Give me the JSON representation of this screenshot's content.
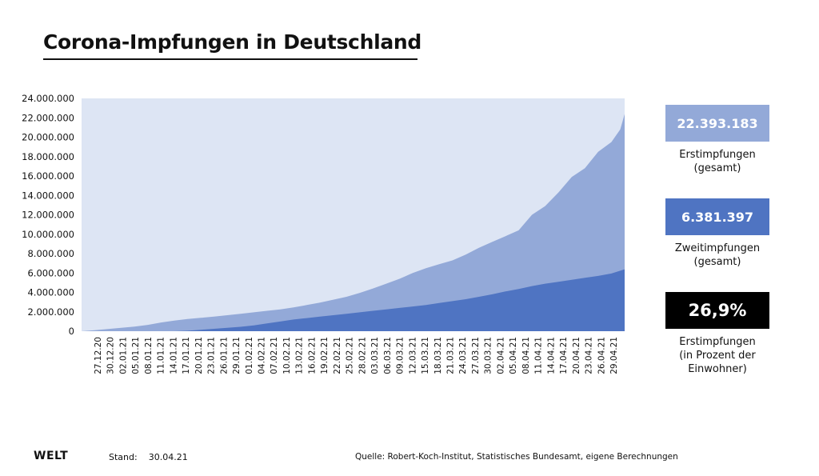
{
  "title": "Corona-Impfungen in Deutschland",
  "colors": {
    "background_area": "#dde5f4",
    "erstimpfungen": "#93a9d8",
    "zweitimpfungen": "#4f74c2",
    "box_percent": "#000000"
  },
  "stats": [
    {
      "value": "22.393.183",
      "label": "Erstimpfungen\n(gesamt)"
    },
    {
      "value": "6.381.397",
      "label": "Zweitimpfungen\n(gesamt)"
    },
    {
      "value": "26,9%",
      "label": "Erstimpfungen\n(in Prozent der\nEinwohner)"
    }
  ],
  "footer": {
    "logo": "WELT",
    "stand_label": "Stand:",
    "stand_date": "30.04.21",
    "source": "Quelle: Robert-Koch-Institut, Statistisches Bundesamt, eigene Berechnungen"
  },
  "chart_data": {
    "type": "area",
    "title": "Corona-Impfungen in Deutschland",
    "xlabel": "",
    "ylabel": "",
    "ylim": [
      0,
      24000000
    ],
    "y_ticks": [
      0,
      2000000,
      4000000,
      6000000,
      8000000,
      10000000,
      12000000,
      14000000,
      16000000,
      18000000,
      20000000,
      22000000,
      24000000
    ],
    "y_tick_labels": [
      "0",
      "2.000.000",
      "4.000.000",
      "6.000.000",
      "8.000.000",
      "10.000.000",
      "12.000.000",
      "14.000.000",
      "16.000.000",
      "18.000.000",
      "20.000.000",
      "22.000.000",
      "24.000.000"
    ],
    "x_start": "2020-12-27",
    "x_end": "2021-04-29",
    "x_tick_labels": [
      "27.12.20",
      "30.12.20",
      "02.01.21",
      "05.01.21",
      "08.01.21",
      "11.01.21",
      "14.01.21",
      "17.01.21",
      "20.01.21",
      "23.01.21",
      "26.01.21",
      "29.01.21",
      "01.02.21",
      "04.02.21",
      "07.02.21",
      "10.02.21",
      "13.02.21",
      "16.02.21",
      "19.02.21",
      "22.02.21",
      "25.02.21",
      "28.02.21",
      "03.03.21",
      "06.03.21",
      "09.03.21",
      "12.03.21",
      "15.03.21",
      "18.03.21",
      "21.03.21",
      "24.03.21",
      "27.03.21",
      "30.03.21",
      "02.04.21",
      "05.04.21",
      "08.04.21",
      "11.04.21",
      "14.04.21",
      "17.04.21",
      "20.04.21",
      "23.04.21",
      "26.04.21",
      "29.04.21"
    ],
    "grid": false,
    "series": [
      {
        "name": "Erstimpfungen",
        "points": [
          [
            "2020-12-27",
            0
          ],
          [
            "2020-12-30",
            100000
          ],
          [
            "2021-01-02",
            230000
          ],
          [
            "2021-01-05",
            350000
          ],
          [
            "2021-01-08",
            480000
          ],
          [
            "2021-01-11",
            650000
          ],
          [
            "2021-01-14",
            900000
          ],
          [
            "2021-01-17",
            1100000
          ],
          [
            "2021-01-20",
            1250000
          ],
          [
            "2021-01-23",
            1380000
          ],
          [
            "2021-01-26",
            1500000
          ],
          [
            "2021-01-29",
            1650000
          ],
          [
            "2021-02-01",
            1800000
          ],
          [
            "2021-02-04",
            1950000
          ],
          [
            "2021-02-07",
            2100000
          ],
          [
            "2021-02-10",
            2250000
          ],
          [
            "2021-02-13",
            2450000
          ],
          [
            "2021-02-16",
            2700000
          ],
          [
            "2021-02-19",
            2950000
          ],
          [
            "2021-02-22",
            3250000
          ],
          [
            "2021-02-25",
            3550000
          ],
          [
            "2021-02-28",
            3950000
          ],
          [
            "2021-03-03",
            4400000
          ],
          [
            "2021-03-06",
            4900000
          ],
          [
            "2021-03-09",
            5400000
          ],
          [
            "2021-03-12",
            6000000
          ],
          [
            "2021-03-15",
            6500000
          ],
          [
            "2021-03-18",
            6900000
          ],
          [
            "2021-03-21",
            7300000
          ],
          [
            "2021-03-24",
            7900000
          ],
          [
            "2021-03-27",
            8600000
          ],
          [
            "2021-03-30",
            9200000
          ],
          [
            "2021-04-02",
            9800000
          ],
          [
            "2021-04-05",
            10400000
          ],
          [
            "2021-04-08",
            12000000
          ],
          [
            "2021-04-11",
            12900000
          ],
          [
            "2021-04-14",
            14300000
          ],
          [
            "2021-04-17",
            15900000
          ],
          [
            "2021-04-20",
            16800000
          ],
          [
            "2021-04-23",
            18500000
          ],
          [
            "2021-04-26",
            19500000
          ],
          [
            "2021-04-28",
            20800000
          ],
          [
            "2021-04-29",
            22393183
          ]
        ]
      },
      {
        "name": "Zweitimpfungen",
        "points": [
          [
            "2020-12-27",
            0
          ],
          [
            "2021-01-17",
            0
          ],
          [
            "2021-01-20",
            50000
          ],
          [
            "2021-01-23",
            150000
          ],
          [
            "2021-01-26",
            250000
          ],
          [
            "2021-01-29",
            350000
          ],
          [
            "2021-02-01",
            450000
          ],
          [
            "2021-02-04",
            600000
          ],
          [
            "2021-02-07",
            800000
          ],
          [
            "2021-02-10",
            1000000
          ],
          [
            "2021-02-13",
            1200000
          ],
          [
            "2021-02-16",
            1350000
          ],
          [
            "2021-02-19",
            1500000
          ],
          [
            "2021-02-22",
            1650000
          ],
          [
            "2021-02-25",
            1800000
          ],
          [
            "2021-02-28",
            1950000
          ],
          [
            "2021-03-03",
            2100000
          ],
          [
            "2021-03-06",
            2250000
          ],
          [
            "2021-03-09",
            2400000
          ],
          [
            "2021-03-12",
            2550000
          ],
          [
            "2021-03-15",
            2700000
          ],
          [
            "2021-03-18",
            2900000
          ],
          [
            "2021-03-21",
            3100000
          ],
          [
            "2021-03-24",
            3300000
          ],
          [
            "2021-03-27",
            3550000
          ],
          [
            "2021-03-30",
            3800000
          ],
          [
            "2021-04-02",
            4100000
          ],
          [
            "2021-04-05",
            4350000
          ],
          [
            "2021-04-08",
            4650000
          ],
          [
            "2021-04-11",
            4900000
          ],
          [
            "2021-04-14",
            5100000
          ],
          [
            "2021-04-17",
            5300000
          ],
          [
            "2021-04-20",
            5500000
          ],
          [
            "2021-04-23",
            5700000
          ],
          [
            "2021-04-26",
            5950000
          ],
          [
            "2021-04-29",
            6381397
          ]
        ]
      }
    ]
  }
}
